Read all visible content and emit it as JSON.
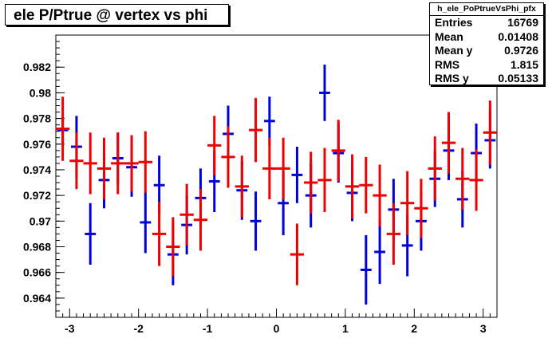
{
  "title": "ele P/Ptrue @ vertex vs phi",
  "stats": {
    "name": "h_ele_PoPtrueVsPhi_pfx",
    "rows": [
      {
        "label": "Entries",
        "value": "16769"
      },
      {
        "label": "Mean",
        "value": "0.01408"
      },
      {
        "label": "Mean y",
        "value": "0.9726"
      },
      {
        "label": "RMS",
        "value": "1.815"
      },
      {
        "label": "RMS y",
        "value": "0.05133"
      }
    ]
  },
  "chart_data": {
    "type": "scatter",
    "title": "ele P/Ptrue @ vertex vs phi",
    "xlim": [
      -3.2,
      3.2
    ],
    "ylim": [
      0.9625,
      0.9845
    ],
    "xticks": [
      -3,
      -2,
      -1,
      0,
      1,
      2,
      3
    ],
    "yticks": [
      0.964,
      0.966,
      0.968,
      0.97,
      0.972,
      0.974,
      0.976,
      0.978,
      0.98,
      0.982
    ],
    "ytick_labels": [
      "0.964",
      "0.966",
      "0.968",
      "0.97",
      "0.972",
      "0.974",
      "0.976",
      "0.978",
      "0.98",
      "0.982"
    ],
    "xtick_labels": [
      "-3",
      "-2",
      "-1",
      "0",
      "1",
      "2",
      "3"
    ],
    "series": [
      {
        "color": "#0000dd",
        "xerr": 0.08,
        "points": [
          {
            "x": -3.1,
            "y": 0.9771,
            "e": 0.001
          },
          {
            "x": -2.9,
            "y": 0.9758,
            "e": 0.0024
          },
          {
            "x": -2.7,
            "y": 0.969,
            "e": 0.0024
          },
          {
            "x": -2.5,
            "y": 0.9732,
            "e": 0.0022
          },
          {
            "x": -2.3,
            "y": 0.9749,
            "e": 0.002
          },
          {
            "x": -2.1,
            "y": 0.9742,
            "e": 0.0023
          },
          {
            "x": -1.9,
            "y": 0.9699,
            "e": 0.0024
          },
          {
            "x": -1.7,
            "y": 0.9728,
            "e": 0.0023
          },
          {
            "x": -1.5,
            "y": 0.9674,
            "e": 0.0024
          },
          {
            "x": -1.3,
            "y": 0.9697,
            "e": 0.0023
          },
          {
            "x": -1.1,
            "y": 0.9718,
            "e": 0.0023
          },
          {
            "x": -0.9,
            "y": 0.9731,
            "e": 0.0024
          },
          {
            "x": -0.7,
            "y": 0.9768,
            "e": 0.0022
          },
          {
            "x": -0.5,
            "y": 0.9724,
            "e": 0.0023
          },
          {
            "x": -0.3,
            "y": 0.97,
            "e": 0.0023
          },
          {
            "x": -0.1,
            "y": 0.9778,
            "e": 0.0019
          },
          {
            "x": 0.1,
            "y": 0.9714,
            "e": 0.0025
          },
          {
            "x": 0.3,
            "y": 0.9736,
            "e": 0.0022
          },
          {
            "x": 0.5,
            "y": 0.972,
            "e": 0.0025
          },
          {
            "x": 0.7,
            "y": 0.98,
            "e": 0.0022
          },
          {
            "x": 0.9,
            "y": 0.9753,
            "e": 0.0023
          },
          {
            "x": 1.1,
            "y": 0.9722,
            "e": 0.0022
          },
          {
            "x": 1.3,
            "y": 0.9662,
            "e": 0.0027
          },
          {
            "x": 1.5,
            "y": 0.9676,
            "e": 0.0025
          },
          {
            "x": 1.7,
            "y": 0.9709,
            "e": 0.0024
          },
          {
            "x": 1.9,
            "y": 0.9681,
            "e": 0.0024
          },
          {
            "x": 2.1,
            "y": 0.97,
            "e": 0.0023
          },
          {
            "x": 2.3,
            "y": 0.9733,
            "e": 0.0022
          },
          {
            "x": 2.5,
            "y": 0.9755,
            "e": 0.0023
          },
          {
            "x": 2.7,
            "y": 0.9717,
            "e": 0.0022
          },
          {
            "x": 2.9,
            "y": 0.9753,
            "e": 0.0023
          },
          {
            "x": 3.1,
            "y": 0.9763,
            "e": 0.0022
          }
        ]
      },
      {
        "color": "#ee0000",
        "xerr": 0.1,
        "points": [
          {
            "x": -3.1,
            "y": 0.9772,
            "e": 0.0025
          },
          {
            "x": -2.9,
            "y": 0.9747,
            "e": 0.0022
          },
          {
            "x": -2.7,
            "y": 0.9745,
            "e": 0.0024
          },
          {
            "x": -2.5,
            "y": 0.9741,
            "e": 0.0024
          },
          {
            "x": -2.3,
            "y": 0.9745,
            "e": 0.0024
          },
          {
            "x": -2.1,
            "y": 0.9745,
            "e": 0.0022
          },
          {
            "x": -1.9,
            "y": 0.9746,
            "e": 0.0024
          },
          {
            "x": -1.7,
            "y": 0.969,
            "e": 0.0025
          },
          {
            "x": -1.5,
            "y": 0.968,
            "e": 0.0023
          },
          {
            "x": -1.3,
            "y": 0.9705,
            "e": 0.0024
          },
          {
            "x": -1.1,
            "y": 0.9701,
            "e": 0.0024
          },
          {
            "x": -0.9,
            "y": 0.9759,
            "e": 0.0023
          },
          {
            "x": -0.7,
            "y": 0.975,
            "e": 0.0024
          },
          {
            "x": -0.5,
            "y": 0.9727,
            "e": 0.0024
          },
          {
            "x": -0.3,
            "y": 0.9771,
            "e": 0.0025
          },
          {
            "x": -0.1,
            "y": 0.9741,
            "e": 0.0024
          },
          {
            "x": 0.1,
            "y": 0.9741,
            "e": 0.0024
          },
          {
            "x": 0.3,
            "y": 0.9674,
            "e": 0.0024
          },
          {
            "x": 0.5,
            "y": 0.973,
            "e": 0.0024
          },
          {
            "x": 0.7,
            "y": 0.9732,
            "e": 0.0025
          },
          {
            "x": 0.9,
            "y": 0.9755,
            "e": 0.0024
          },
          {
            "x": 1.1,
            "y": 0.9727,
            "e": 0.0025
          },
          {
            "x": 1.3,
            "y": 0.9728,
            "e": 0.0022
          },
          {
            "x": 1.5,
            "y": 0.972,
            "e": 0.0024
          },
          {
            "x": 1.7,
            "y": 0.969,
            "e": 0.0024
          },
          {
            "x": 1.9,
            "y": 0.9714,
            "e": 0.0025
          },
          {
            "x": 2.1,
            "y": 0.971,
            "e": 0.0023
          },
          {
            "x": 2.3,
            "y": 0.9741,
            "e": 0.0025
          },
          {
            "x": 2.5,
            "y": 0.9761,
            "e": 0.0024
          },
          {
            "x": 2.7,
            "y": 0.9733,
            "e": 0.0024
          },
          {
            "x": 2.9,
            "y": 0.9732,
            "e": 0.0024
          },
          {
            "x": 3.1,
            "y": 0.9769,
            "e": 0.0025
          }
        ]
      }
    ]
  }
}
